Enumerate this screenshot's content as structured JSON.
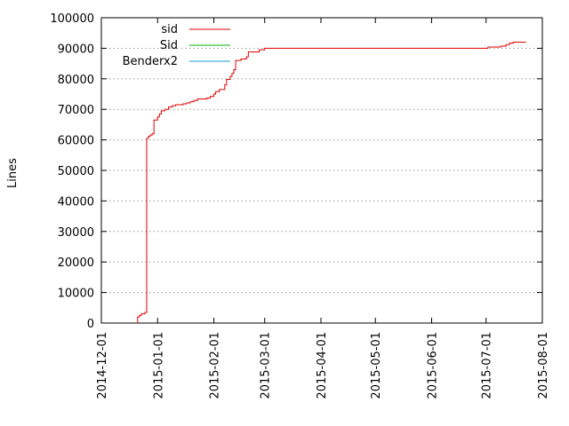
{
  "chart_data": {
    "type": "line",
    "title": "",
    "xlabel": "",
    "ylabel": "Lines",
    "ylim": [
      0,
      100000
    ],
    "yticks": [
      0,
      10000,
      20000,
      30000,
      40000,
      50000,
      60000,
      70000,
      80000,
      90000,
      100000
    ],
    "xlim": [
      "2014-12-01",
      "2015-08-01"
    ],
    "xticks": [
      "2014-12-01",
      "2015-01-01",
      "2015-02-01",
      "2015-03-01",
      "2015-04-01",
      "2015-05-01",
      "2015-06-01",
      "2015-07-01",
      "2015-08-01"
    ],
    "grid": true,
    "legend_position": "top-left",
    "series": [
      {
        "name": "sid",
        "color": "#e00000",
        "step": true,
        "points": [
          [
            "2014-12-21",
            0
          ],
          [
            "2014-12-21",
            2000
          ],
          [
            "2014-12-22",
            2500
          ],
          [
            "2014-12-23",
            3000
          ],
          [
            "2014-12-25",
            3500
          ],
          [
            "2014-12-26",
            5000
          ],
          [
            "2014-12-26",
            60500
          ],
          [
            "2014-12-27",
            61200
          ],
          [
            "2014-12-28",
            61600
          ],
          [
            "2014-12-29",
            62000
          ],
          [
            "2014-12-30",
            66500
          ],
          [
            "2015-01-01",
            67500
          ],
          [
            "2015-01-02",
            68500
          ],
          [
            "2015-01-03",
            69500
          ],
          [
            "2015-01-05",
            70000
          ],
          [
            "2015-01-07",
            70800
          ],
          [
            "2015-01-09",
            71200
          ],
          [
            "2015-01-11",
            71500
          ],
          [
            "2015-01-15",
            71800
          ],
          [
            "2015-01-17",
            72100
          ],
          [
            "2015-01-19",
            72500
          ],
          [
            "2015-01-21",
            72900
          ],
          [
            "2015-01-23",
            73400
          ],
          [
            "2015-01-28",
            73700
          ],
          [
            "2015-01-30",
            74200
          ],
          [
            "2015-02-01",
            75000
          ],
          [
            "2015-02-02",
            75800
          ],
          [
            "2015-02-04",
            76500
          ],
          [
            "2015-02-07",
            78000
          ],
          [
            "2015-02-08",
            79800
          ],
          [
            "2015-02-10",
            80800
          ],
          [
            "2015-02-11",
            81800
          ],
          [
            "2015-02-12",
            83000
          ],
          [
            "2015-02-13",
            86000
          ],
          [
            "2015-02-16",
            86500
          ],
          [
            "2015-02-19",
            87200
          ],
          [
            "2015-02-20",
            88800
          ],
          [
            "2015-02-26",
            89500
          ],
          [
            "2015-03-01",
            90000
          ],
          [
            "2015-07-01",
            90000
          ],
          [
            "2015-07-02",
            90400
          ],
          [
            "2015-07-09",
            90700
          ],
          [
            "2015-07-12",
            91200
          ],
          [
            "2015-07-14",
            91700
          ],
          [
            "2015-07-16",
            92000
          ],
          [
            "2015-07-23",
            92000
          ]
        ]
      },
      {
        "name": "Sid",
        "color": "#00b000",
        "points": []
      },
      {
        "name": "Benderx2",
        "color": "#1a9bd6",
        "points": []
      }
    ]
  }
}
